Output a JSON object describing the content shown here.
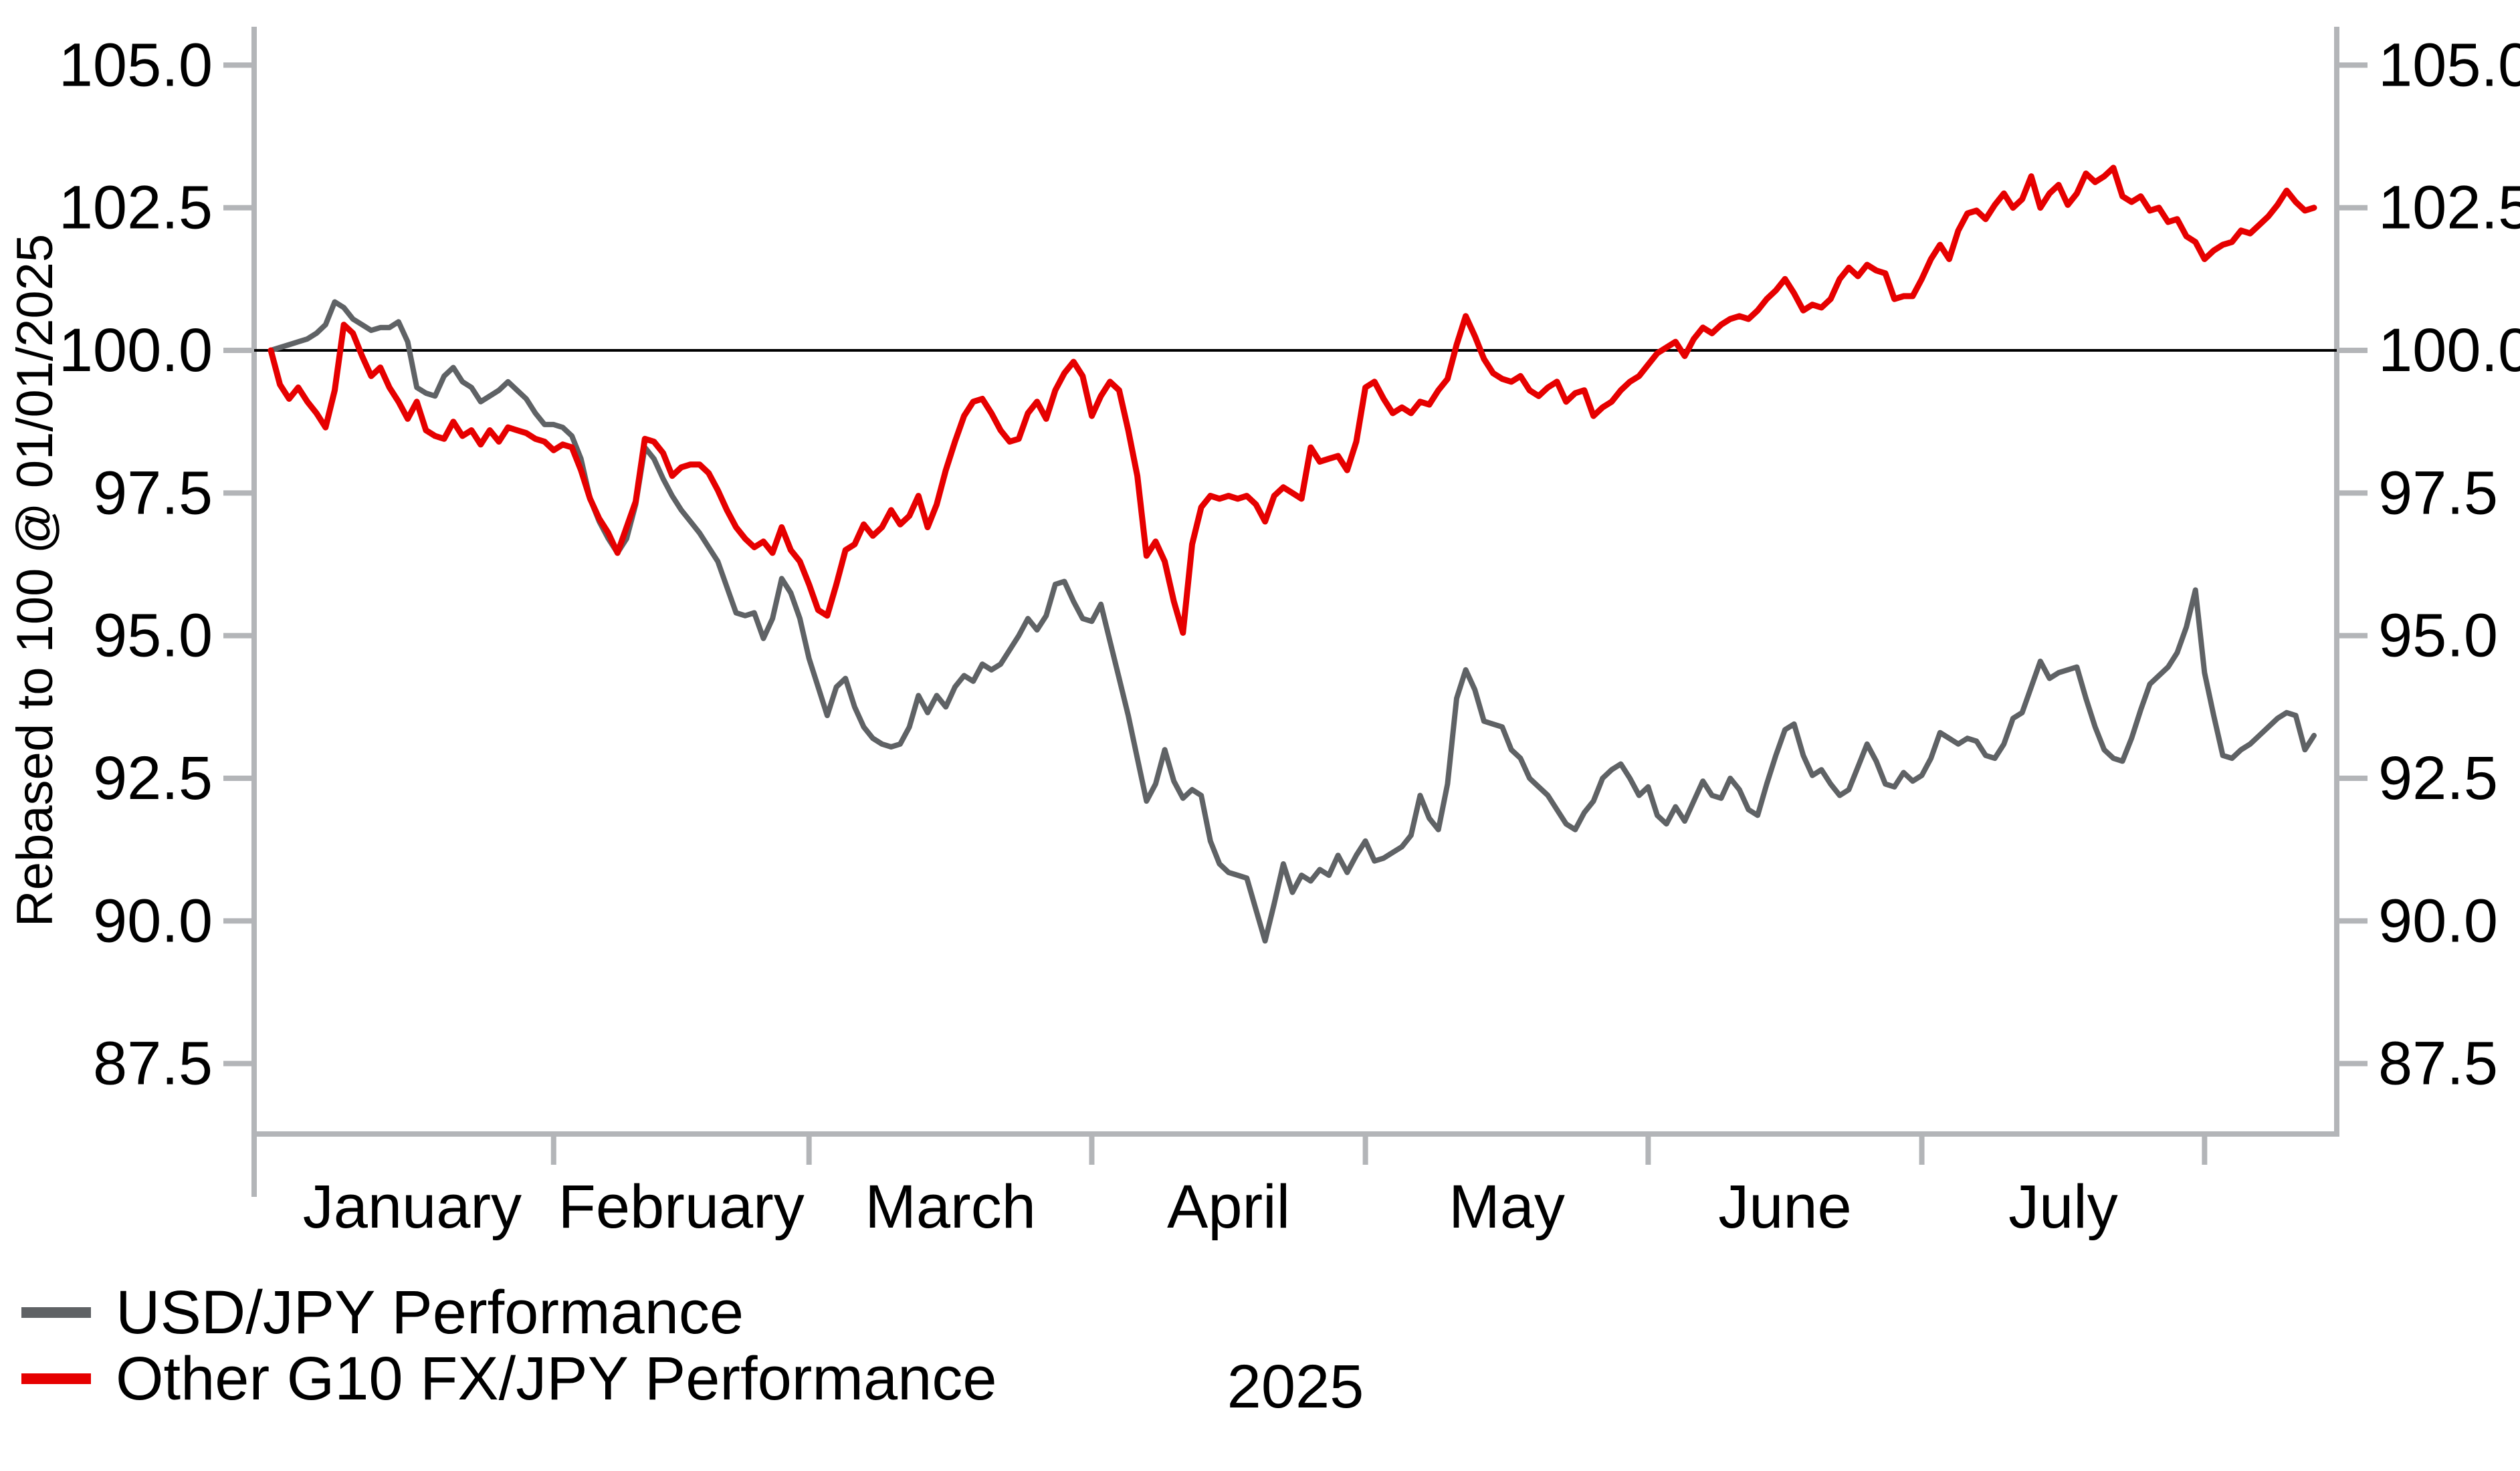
{
  "chart_data": {
    "type": "line",
    "title": "",
    "ylabel": "Rebased to 100 @ 01/01/2025",
    "xlabel_year": "2025",
    "grid": false,
    "legend_position": "bottom-left",
    "baseline_value": 100.0,
    "colors": {
      "axis": "#B3B5B8",
      "baseline_100": "#000000",
      "text": "#000000",
      "background": "#ffffff"
    },
    "y_axis": {
      "ticks": [
        105.0,
        102.5,
        100.0,
        97.5,
        95.0,
        92.5,
        90.0,
        87.5
      ],
      "tick_format_decimals": 1,
      "ylim": [
        86.4,
        105.7
      ],
      "shown_on": "both-sides"
    },
    "x_axis": {
      "start_date": "2025-01-01",
      "end_day_index": 224,
      "month_start_days": [
        0,
        31,
        59,
        90,
        120,
        151,
        181,
        212
      ],
      "month_labels": [
        "January",
        "February",
        "March",
        "April",
        "May",
        "June",
        "July"
      ],
      "year_label": "2025"
    },
    "series": [
      {
        "name": "USD/JPY Performance",
        "color": "#5F6265",
        "width": 8,
        "values": [
          100.0,
          100.05,
          100.1,
          100.15,
          100.2,
          100.3,
          100.45,
          100.85,
          100.75,
          100.55,
          100.45,
          100.35,
          100.4,
          100.4,
          100.5,
          100.15,
          99.35,
          99.25,
          99.2,
          99.55,
          99.7,
          99.45,
          99.35,
          99.1,
          99.2,
          99.3,
          99.45,
          99.3,
          99.15,
          98.9,
          98.7,
          98.7,
          98.65,
          98.5,
          98.1,
          97.4,
          97.0,
          96.7,
          96.45,
          96.7,
          97.3,
          98.3,
          98.1,
          97.75,
          97.45,
          97.2,
          97.0,
          96.8,
          96.55,
          96.3,
          95.85,
          95.4,
          95.35,
          95.4,
          94.95,
          95.3,
          96.0,
          95.75,
          95.3,
          94.6,
          94.1,
          93.6,
          94.1,
          94.25,
          93.75,
          93.4,
          93.2,
          93.1,
          93.05,
          93.1,
          93.4,
          93.95,
          93.65,
          93.95,
          93.75,
          94.1,
          94.3,
          94.2,
          94.5,
          94.4,
          94.5,
          94.75,
          95.0,
          95.3,
          95.1,
          95.35,
          95.9,
          95.95,
          95.6,
          95.3,
          95.25,
          95.55,
          94.9,
          94.25,
          93.6,
          92.85,
          92.1,
          92.4,
          93.0,
          92.45,
          92.15,
          92.3,
          92.2,
          91.4,
          91.0,
          90.85,
          90.8,
          90.75,
          90.2,
          89.65,
          90.3,
          91.0,
          90.5,
          90.8,
          90.7,
          90.9,
          90.8,
          91.15,
          90.85,
          91.15,
          91.4,
          91.05,
          91.1,
          91.2,
          91.3,
          91.5,
          92.2,
          91.8,
          91.6,
          92.4,
          93.9,
          94.4,
          94.05,
          93.5,
          93.45,
          93.4,
          93.0,
          92.85,
          92.5,
          92.35,
          92.2,
          91.95,
          91.7,
          91.6,
          91.9,
          92.1,
          92.5,
          92.65,
          92.75,
          92.5,
          92.2,
          92.35,
          91.85,
          91.7,
          92.0,
          91.75,
          92.1,
          92.45,
          92.2,
          92.15,
          92.5,
          92.3,
          91.95,
          91.85,
          92.4,
          92.9,
          93.35,
          93.45,
          92.9,
          92.55,
          92.65,
          92.4,
          92.2,
          92.3,
          92.7,
          93.1,
          92.8,
          92.4,
          92.35,
          92.6,
          92.45,
          92.55,
          92.85,
          93.3,
          93.2,
          93.1,
          93.2,
          93.15,
          92.9,
          92.85,
          93.1,
          93.55,
          93.65,
          94.1,
          94.55,
          94.25,
          94.35,
          94.4,
          94.45,
          93.9,
          93.4,
          93.0,
          92.85,
          92.8,
          93.2,
          93.7,
          94.15,
          94.3,
          94.45,
          94.7,
          95.15,
          95.8,
          94.35,
          93.6,
          92.9,
          92.85,
          93.0,
          93.1,
          93.25,
          93.4,
          93.55,
          93.65,
          93.6,
          93.0,
          93.25
        ]
      },
      {
        "name": "Other G10 FX/JPY Performance",
        "color": "#E60000",
        "width": 9,
        "values": [
          100.0,
          99.4,
          99.15,
          99.35,
          99.1,
          98.9,
          98.65,
          99.3,
          100.45,
          100.3,
          99.9,
          99.55,
          99.7,
          99.35,
          99.1,
          98.8,
          99.1,
          98.6,
          98.5,
          98.45,
          98.75,
          98.5,
          98.6,
          98.35,
          98.6,
          98.4,
          98.65,
          98.6,
          98.55,
          98.45,
          98.4,
          98.25,
          98.35,
          98.3,
          97.9,
          97.4,
          97.05,
          96.8,
          96.45,
          96.9,
          97.35,
          98.45,
          98.4,
          98.2,
          97.8,
          97.95,
          98.0,
          98.0,
          97.85,
          97.55,
          97.2,
          96.9,
          96.7,
          96.55,
          96.65,
          96.45,
          96.9,
          96.5,
          96.3,
          95.9,
          95.45,
          95.35,
          95.9,
          96.5,
          96.6,
          96.95,
          96.75,
          96.9,
          97.2,
          96.95,
          97.1,
          97.45,
          96.9,
          97.3,
          97.9,
          98.4,
          98.85,
          99.1,
          99.15,
          98.9,
          98.6,
          98.4,
          98.45,
          98.9,
          99.1,
          98.8,
          99.3,
          99.6,
          99.8,
          99.55,
          98.85,
          99.2,
          99.45,
          99.3,
          98.6,
          97.8,
          96.4,
          96.65,
          96.3,
          95.6,
          95.05,
          96.6,
          97.25,
          97.45,
          97.4,
          97.45,
          97.4,
          97.45,
          97.3,
          97.0,
          97.45,
          97.6,
          97.5,
          97.4,
          98.3,
          98.05,
          98.1,
          98.15,
          97.9,
          98.4,
          99.35,
          99.45,
          99.15,
          98.9,
          99.0,
          98.9,
          99.1,
          99.05,
          99.3,
          99.5,
          100.1,
          100.6,
          100.25,
          99.85,
          99.6,
          99.5,
          99.45,
          99.55,
          99.3,
          99.2,
          99.35,
          99.45,
          99.1,
          99.25,
          99.3,
          98.85,
          99.0,
          99.1,
          99.3,
          99.45,
          99.55,
          99.75,
          99.95,
          100.05,
          100.15,
          99.9,
          100.2,
          100.4,
          100.3,
          100.45,
          100.55,
          100.6,
          100.55,
          100.7,
          100.9,
          101.05,
          101.25,
          101.0,
          100.7,
          100.8,
          100.75,
          100.9,
          101.25,
          101.45,
          101.3,
          101.5,
          101.4,
          101.35,
          100.9,
          100.95,
          100.95,
          101.25,
          101.6,
          101.85,
          101.6,
          102.1,
          102.4,
          102.45,
          102.3,
          102.55,
          102.75,
          102.5,
          102.65,
          103.05,
          102.5,
          102.75,
          102.9,
          102.55,
          102.75,
          103.1,
          102.95,
          103.05,
          103.2,
          102.7,
          102.6,
          102.7,
          102.45,
          102.5,
          102.25,
          102.3,
          102.0,
          101.9,
          101.6,
          101.75,
          101.85,
          101.9,
          102.1,
          102.05,
          102.2,
          102.35,
          102.55,
          102.8,
          102.6,
          102.45,
          102.5
        ]
      }
    ]
  }
}
